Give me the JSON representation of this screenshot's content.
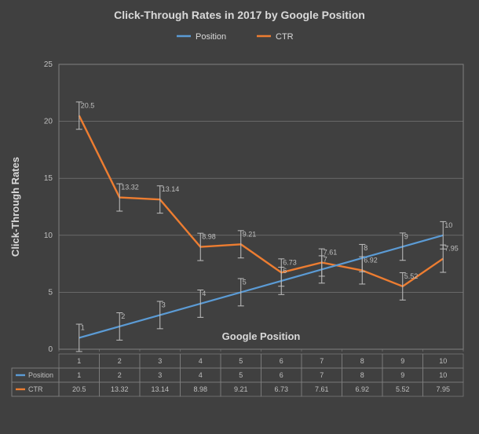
{
  "chart": {
    "type": "line",
    "title": "Click-Through Rates in 2017 by Google Position",
    "title_fontsize": 14,
    "title_weight": "bold",
    "title_color": "#d9d9d9",
    "legend": {
      "items": [
        {
          "label": "Position",
          "color": "#5b9bd5",
          "marker_color": "#5b9bd5"
        },
        {
          "label": "CTR",
          "color": "#ed7d31",
          "marker_color": "#ed7d31"
        }
      ],
      "fontsize": 11,
      "text_color": "#d9d9d9"
    },
    "x": {
      "categories": [
        "1",
        "2",
        "3",
        "4",
        "5",
        "6",
        "7",
        "8",
        "9",
        "10"
      ],
      "label": "Google Position",
      "label_fontsize": 13,
      "label_weight": "bold",
      "label_color": "#d9d9d9"
    },
    "y": {
      "label": "Click-Through Rates",
      "ylim": [
        0,
        25
      ],
      "ytick_step": 5,
      "ticks": [
        0,
        5,
        10,
        15,
        20,
        25
      ],
      "label_fontsize": 13,
      "label_weight": "bold",
      "label_color": "#d9d9d9",
      "tick_color": "#bfbfbf",
      "tick_fontsize": 10
    },
    "series": {
      "position": {
        "values": [
          1,
          2,
          3,
          4,
          5,
          6,
          7,
          8,
          9,
          10
        ],
        "color": "#5b9bd5",
        "line_width": 2.2,
        "data_labels": [
          "1",
          "2",
          "3",
          "4",
          "5",
          "6",
          "7",
          "8",
          "9",
          "10"
        ],
        "label_color": "#bfbfbf",
        "label_fontsize": 9
      },
      "ctr": {
        "values": [
          20.5,
          13.32,
          13.14,
          8.98,
          9.21,
          6.73,
          7.61,
          6.92,
          5.52,
          7.95
        ],
        "color": "#ed7d31",
        "line_width": 2.4,
        "data_labels": [
          "20.5",
          "13.32",
          "13.14",
          "8.98",
          "9.21",
          "6.73",
          "7.61",
          "6.92",
          "5.52",
          "7.95"
        ],
        "label_color": "#bfbfbf",
        "label_fontsize": 9
      }
    },
    "error_bar": {
      "half": 1.2,
      "color": "#bfbfbf",
      "width": 1
    },
    "plot": {
      "background": "#404040",
      "border_color": "#808080",
      "grid_color": "#808080",
      "grid_width": 0.6
    },
    "data_table": {
      "rows": [
        {
          "header": "",
          "cells": [
            "1",
            "2",
            "3",
            "4",
            "5",
            "6",
            "7",
            "8",
            "9",
            "10"
          ],
          "color": "#bfbfbf",
          "marker": null
        },
        {
          "header": "Position",
          "cells": [
            "1",
            "2",
            "3",
            "4",
            "5",
            "6",
            "7",
            "8",
            "9",
            "10"
          ],
          "color": "#bfbfbf",
          "marker": "#5b9bd5"
        },
        {
          "header": "CTR",
          "cells": [
            "20.5",
            "13.32",
            "13.14",
            "8.98",
            "9.21",
            "6.73",
            "7.61",
            "6.92",
            "5.52",
            "7.95"
          ],
          "color": "#bfbfbf",
          "marker": "#ed7d31"
        }
      ],
      "border_color": "#808080",
      "fontsize": 9
    }
  }
}
